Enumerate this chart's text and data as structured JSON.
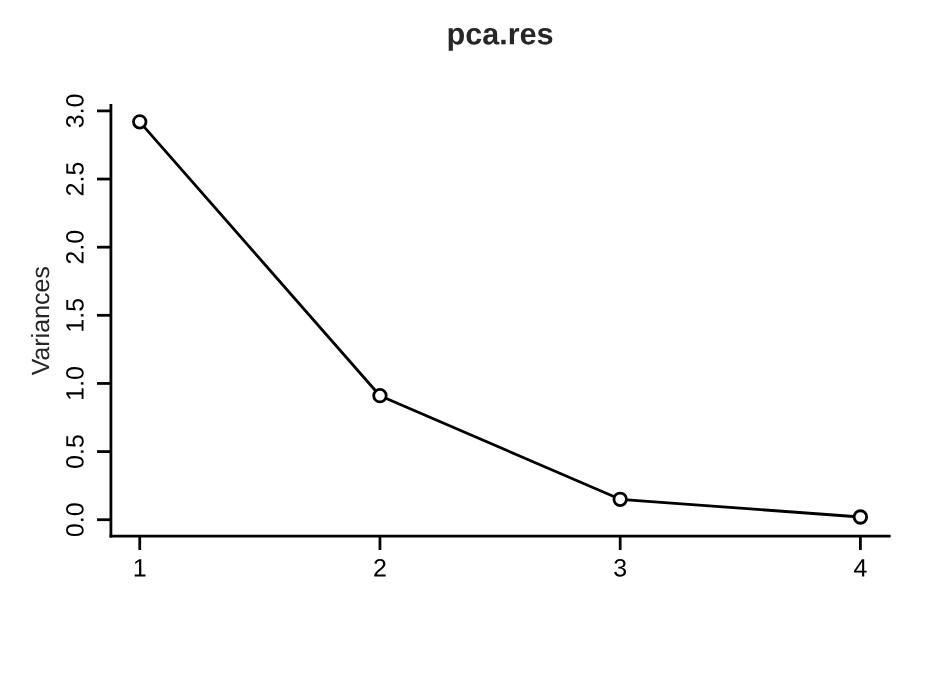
{
  "chart_data": {
    "type": "line",
    "title": "pca.res",
    "ylabel": "Variances",
    "x": [
      1,
      2,
      3,
      4
    ],
    "series": [
      {
        "color": "#000000",
        "values": [
          2.92,
          0.91,
          0.15,
          0.02
        ]
      }
    ],
    "xlim": [
      0.88,
      4.12
    ],
    "xticks": [
      1,
      2,
      3,
      4
    ],
    "ylim": [
      -0.12,
      3.04
    ],
    "yticks": [
      {
        "value": 0,
        "label": "0.0"
      },
      {
        "value": 0.5,
        "label": "0.5"
      },
      {
        "value": 1,
        "label": "1.0"
      },
      {
        "value": 1.5,
        "label": "1.5"
      },
      {
        "value": 2,
        "label": "2.0"
      },
      {
        "value": 2.5,
        "label": "2.5"
      },
      {
        "value": 3,
        "label": "3.0"
      }
    ],
    "marker": "circle",
    "line_style": "solid",
    "grid": false
  }
}
